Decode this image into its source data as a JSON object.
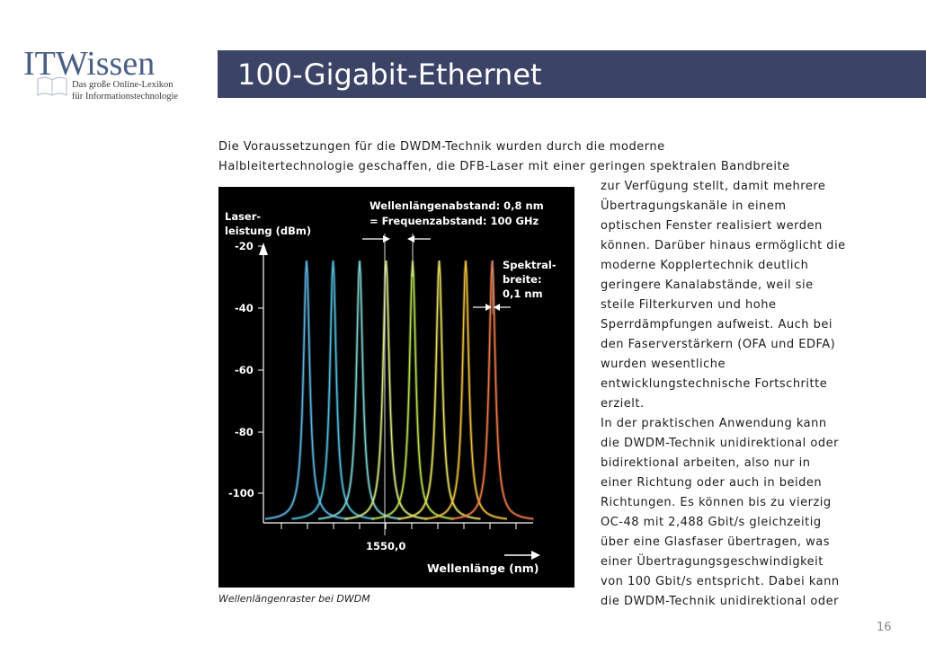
{
  "logo": {
    "name": "ITWissen",
    "tagline_line1": "Das große Online-Lexikon",
    "tagline_line2": "für Informationstechnologie"
  },
  "header": {
    "title": "100-Gigabit-Ethernet"
  },
  "body": {
    "lines": [
      "Die Voraussetzungen für die DWDM-Technik wurden durch die moderne",
      "Halbleitertechnologie geschaffen, die DFB-Laser mit einer geringen spektralen Bandbreite",
      "zur Verfügung stellt, damit mehrere",
      "Übertragungskanäle in einem",
      "optischen Fenster realisiert werden",
      "können. Darüber hinaus ermöglicht die",
      "moderne Kopplertechnik deutlich",
      "geringere Kanalabstände, weil sie",
      "steile Filterkurven und hohe",
      "Sperrdämpfungen aufweist. Auch bei",
      "den Faserverstärkern (OFA und EDFA)",
      "wurden wesentliche",
      "entwicklungstechnische Fortschritte",
      "erzielt.",
      "In der praktischen Anwendung kann",
      "die DWDM-Technik unidirektional oder",
      "bidirektional arbeiten, also nur in",
      "einer Richtung oder auch in beiden",
      "Richtungen. Es können bis zu vierzig",
      "OC-48 mit 2,488 Gbit/s gleichzeitig",
      "über eine Glasfaser übertragen, was",
      "einer Übertragungsgeschwindigkeit",
      "von 100 Gbit/s entspricht. Dabei kann",
      "die DWDM-Technik unidirektional oder"
    ]
  },
  "figure": {
    "ylabel_line1": "Laser-",
    "ylabel_line2": "leistung (dBm)",
    "yticks": [
      "-20",
      "-40",
      "-60",
      "-80",
      "-100"
    ],
    "annotation_line1": "Wellenlängenabstand: 0,8 nm",
    "annotation_line2": "= Frequenzabstand: 100 GHz",
    "spectral_line1": "Spektral-",
    "spectral_line2": "breite:",
    "spectral_line3": "0,1 nm",
    "center_label": "1550,0",
    "xlabel": "Wellenlänge (nm)",
    "peak_colors": [
      "#5fb6e6",
      "#52bfe0",
      "#7fd0d0",
      "#d8e880",
      "#b8e050",
      "#e8e060",
      "#f0c040",
      "#f07a4a"
    ]
  },
  "caption": "Wellenlängenraster bei DWDM",
  "page_number": "16"
}
